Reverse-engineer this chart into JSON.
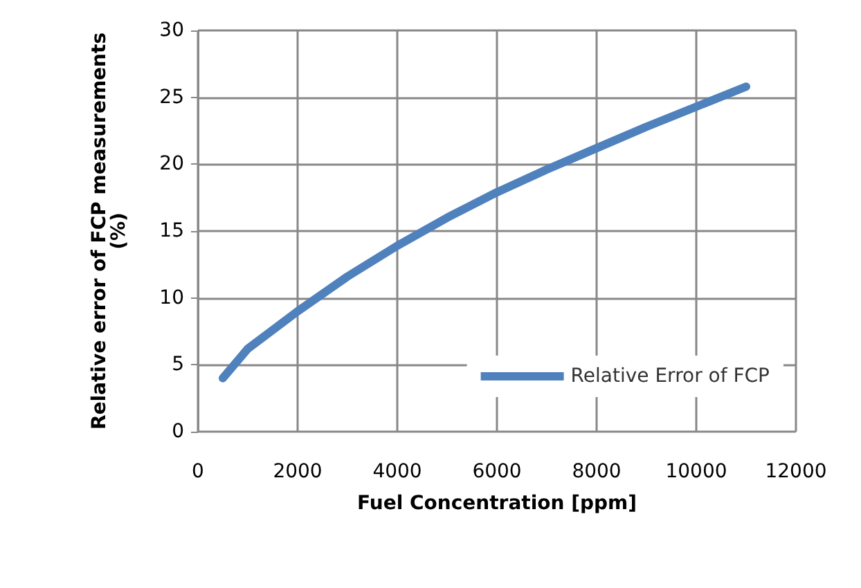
{
  "chart_data": {
    "type": "line",
    "xlabel": "Fuel Concentration [ppm]",
    "ylabel": "Relative error of FCP measurements\n(%)",
    "x": [
      500,
      1000,
      2000,
      3000,
      4000,
      5000,
      6000,
      7000,
      8000,
      9000,
      10000,
      11000
    ],
    "series": [
      {
        "name": "Relative Error of FCP",
        "color": "#4f81bd",
        "values": [
          4,
          6.2,
          9,
          11.6,
          13.9,
          16,
          17.9,
          19.6,
          21.2,
          22.8,
          24.3,
          25.8
        ]
      }
    ],
    "xlim": [
      0,
      12000
    ],
    "xticks": [
      0,
      2000,
      4000,
      6000,
      8000,
      10000,
      12000
    ],
    "ylim": [
      0,
      30
    ],
    "yticks": [
      0,
      5,
      10,
      15,
      20,
      25,
      30
    ],
    "grid": true,
    "legend": "bottom right",
    "marker": "none",
    "line_style": "solid"
  }
}
